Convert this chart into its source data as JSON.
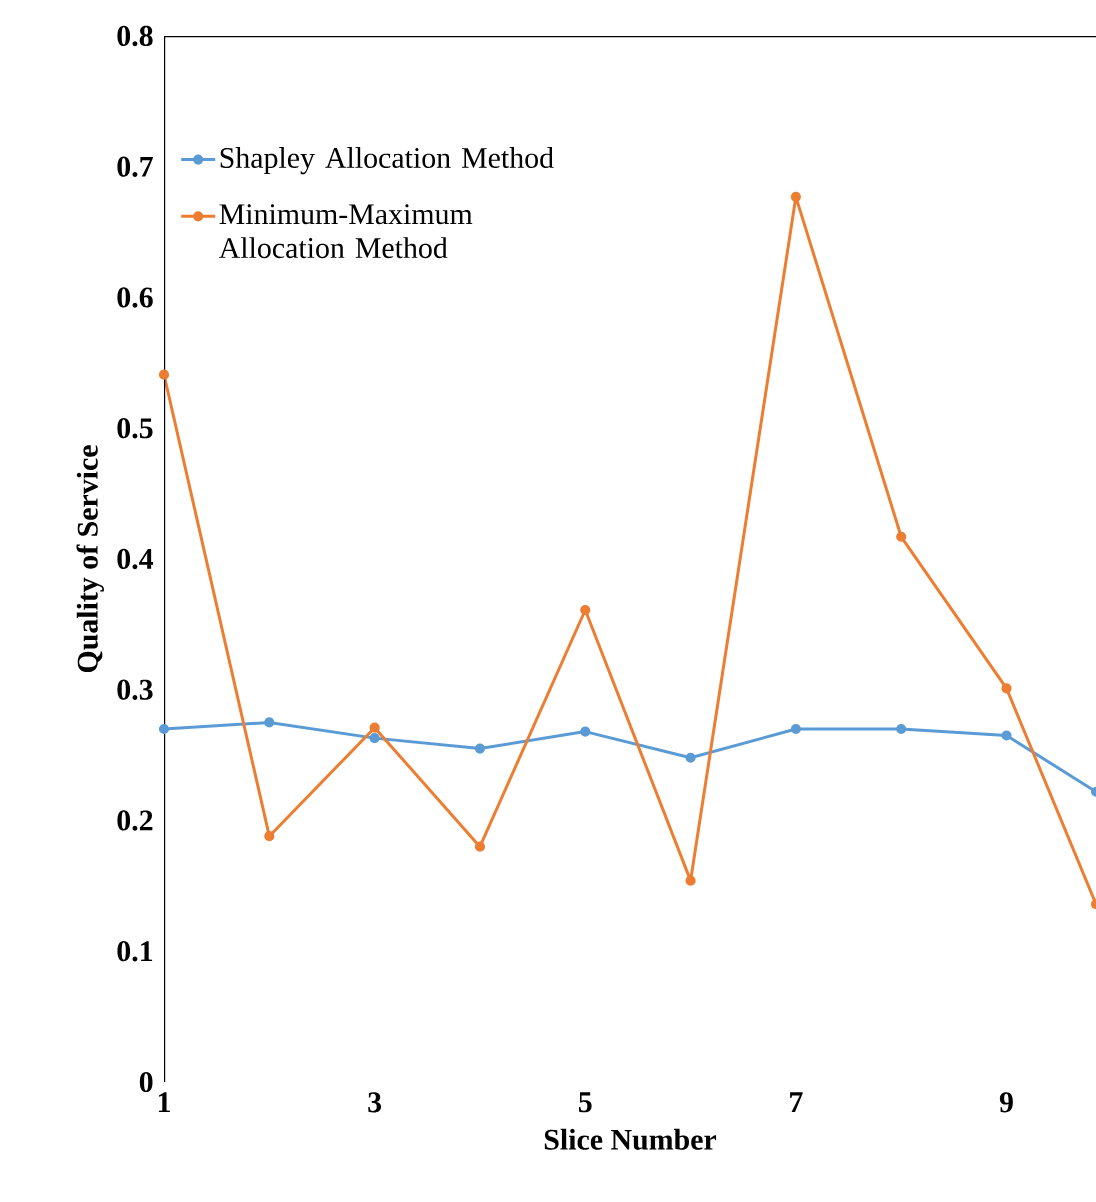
{
  "chart_data": {
    "type": "line",
    "xlabel": "Slice Number",
    "ylabel": "Quality of Service",
    "x": [
      1,
      2,
      3,
      4,
      5,
      6,
      7,
      8,
      9,
      9.85
    ],
    "series": [
      {
        "name": "Shapley Allocation Method",
        "color": "#5b9bd5",
        "values": [
          0.27,
          0.275,
          0.263,
          0.255,
          0.268,
          0.248,
          0.27,
          0.27,
          0.265,
          0.222
        ]
      },
      {
        "name": "Minimum-Maximum Allocation Method",
        "color": "#ed7d31",
        "values": [
          0.541,
          0.188,
          0.271,
          0.18,
          0.361,
          0.154,
          0.677,
          0.417,
          0.301,
          0.136
        ]
      }
    ],
    "xlim": [
      1,
      9.85
    ],
    "xticks": [
      1,
      3,
      5,
      7,
      9
    ],
    "ylim": [
      0,
      0.8
    ],
    "yticks": [
      0,
      0.1,
      0.2,
      0.3,
      0.4,
      0.5,
      0.6,
      0.7,
      0.8
    ],
    "marker": "circle",
    "line_style": "solid",
    "legend": "top left",
    "grid": false
  }
}
